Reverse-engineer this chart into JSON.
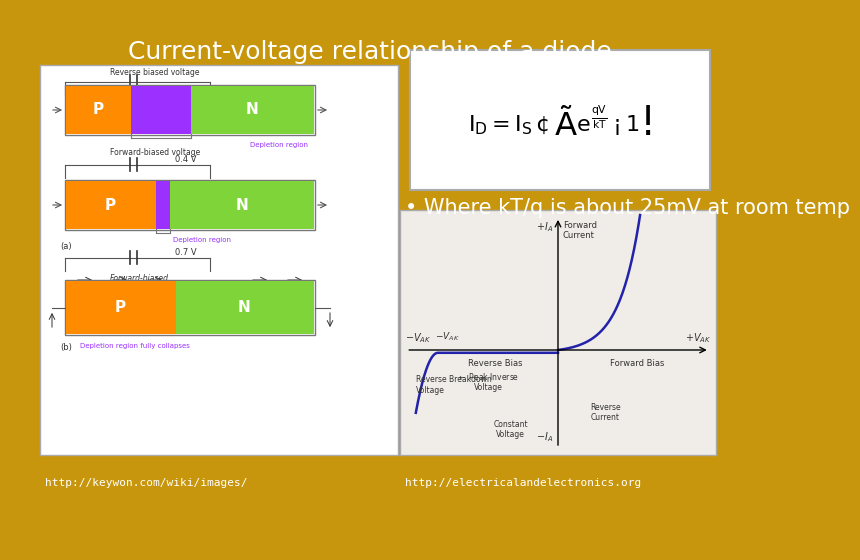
{
  "title": "Current-voltage relationship of a diode",
  "title_color": "#ffffff",
  "title_fontsize": 18,
  "background_color": "#C8960C",
  "bullet_text": "• Where kT/q is about 25mV at room temp",
  "bullet_fontsize": 15,
  "bullet_color": "#ffffff",
  "url_left": "http://keywon.com/wiki/images/",
  "url_right": "http://electricalandelectronics.org",
  "url_fontsize": 8,
  "url_color": "#ffffff",
  "formula_text": "$I_D = I_S\\cdot\\left(e^{\\frac{qV}{kT}}-1\\right)$",
  "formula_fontsize": 16,
  "formula_color": "#000000",
  "formula_bg": "#ffffff",
  "left_bg": "#ffffff",
  "right_bg": "#ffffff",
  "color_P": "#FF8C00",
  "color_N": "#7FD43A",
  "color_depletion": "#9B30FF",
  "color_depletion_thin": "#9B30FF",
  "color_curve": "#2222AA",
  "text_dark": "#333333",
  "text_purple": "#9B30FF"
}
